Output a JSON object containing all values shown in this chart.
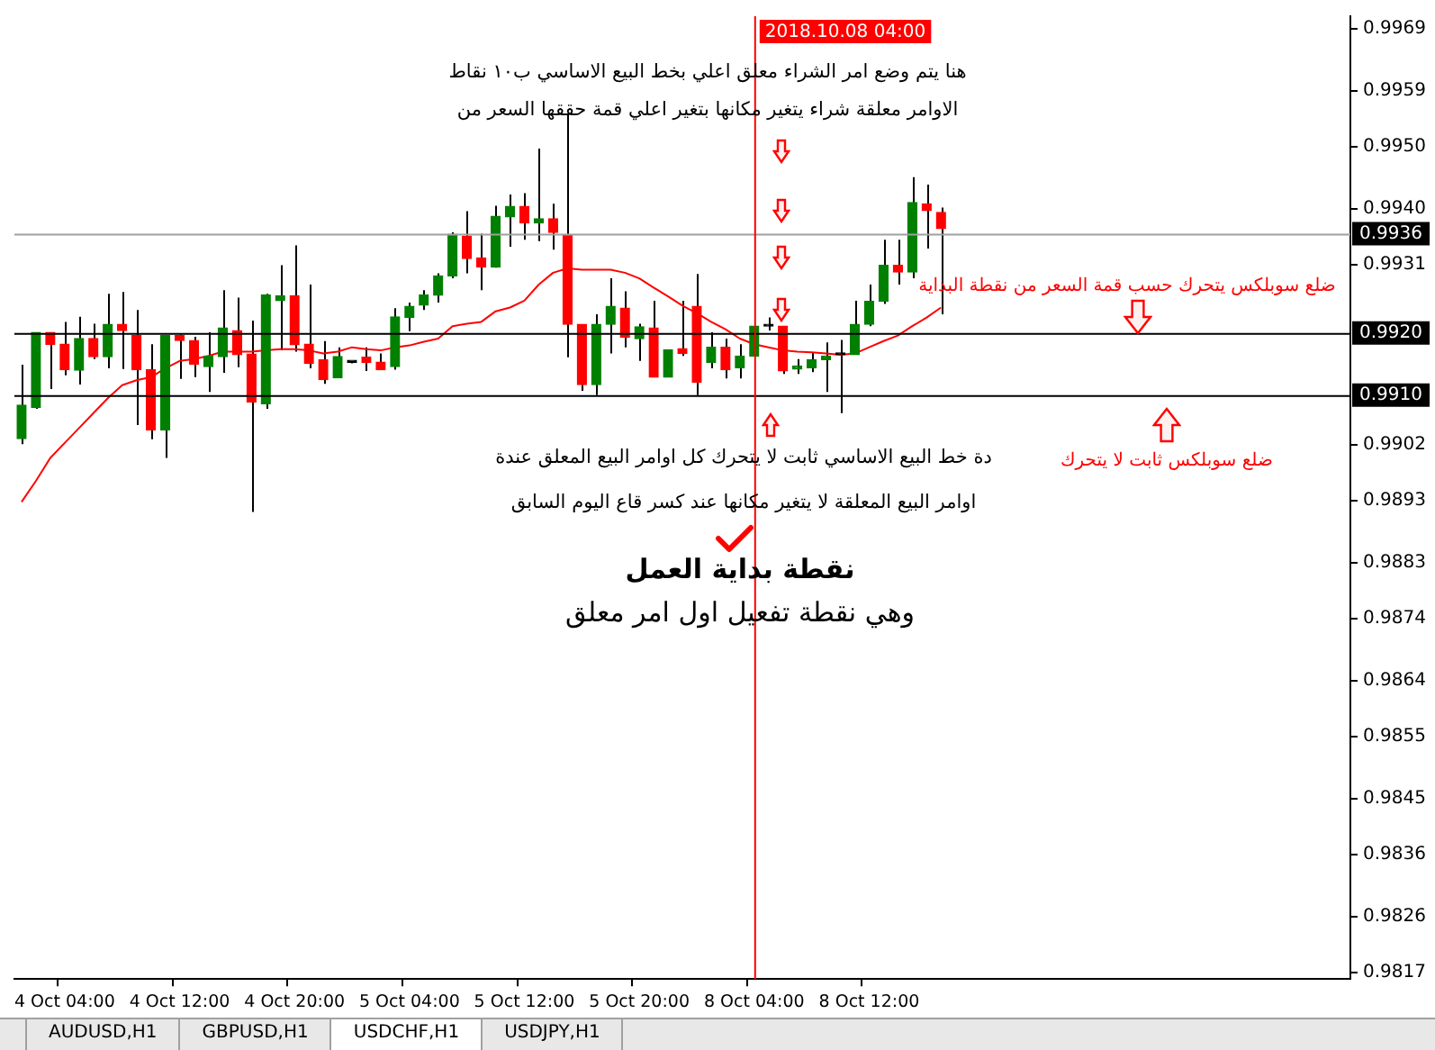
{
  "chart_data": {
    "type": "candlestick",
    "categories": [
      null,
      null,
      null,
      "4 Oct 04:00",
      null,
      null,
      null,
      null,
      null,
      null,
      null,
      "4 Oct 12:00",
      null,
      null,
      null,
      null,
      null,
      null,
      null,
      "4 Oct 20:00",
      null,
      null,
      null,
      null,
      null,
      null,
      null,
      "5 Oct 04:00",
      null,
      null,
      null,
      null,
      null,
      null,
      null,
      "5 Oct 12:00",
      null,
      null,
      null,
      null,
      null,
      null,
      null,
      "5 Oct 20:00",
      null,
      null,
      null,
      null,
      null,
      null,
      null,
      "8 Oct 04:00",
      null,
      null,
      null,
      null,
      null,
      null,
      null,
      "8 Oct 12:00",
      null,
      null,
      null,
      null,
      null,
      null,
      null,
      null,
      null,
      null,
      null,
      null,
      null,
      null,
      null,
      null,
      null,
      null,
      null,
      null,
      null,
      null,
      null,
      null,
      null,
      null,
      null,
      null,
      null,
      null,
      null,
      null,
      null
    ],
    "series": [
      {
        "type": "line",
        "color": "#ff0000",
        "values": [
          0.98928,
          0.98962,
          0.98999,
          0.99023,
          0.99047,
          0.99071,
          0.99095,
          0.99116,
          0.99124,
          0.99129,
          0.99143,
          0.99155,
          0.99158,
          0.99163,
          0.9917,
          0.9917,
          0.9917,
          0.99172,
          0.99174,
          0.99174,
          0.99172,
          0.99167,
          0.9917,
          0.99177,
          0.99174,
          0.99172,
          0.99177,
          0.9918,
          0.99186,
          0.99191,
          0.99211,
          0.99215,
          0.99218,
          0.99235,
          0.99241,
          0.99252,
          0.99278,
          0.99297,
          0.99304,
          0.99302,
          0.99302,
          0.99302,
          0.99297,
          0.99288,
          0.99273,
          0.99259,
          0.99244,
          0.99232,
          0.99218,
          0.99206,
          0.99191,
          0.99182,
          0.99177,
          0.99172,
          0.9917,
          0.99169,
          0.99167,
          0.99165,
          0.99167,
          0.99177,
          0.99187,
          0.99196,
          0.99211,
          0.99225,
          0.99241,
          null,
          null,
          null,
          null,
          null,
          null,
          null,
          null,
          null,
          null,
          null,
          null,
          null,
          null,
          null,
          null,
          null,
          null,
          null,
          null,
          null,
          null,
          null,
          null,
          null,
          null,
          null,
          null
        ]
      },
      {
        "ohlc": [
          [
            0.9903,
            0.99149,
            0.99021,
            0.99084
          ],
          [
            0.9908,
            0.99201,
            0.99078,
            0.99201
          ],
          [
            0.99201,
            0.99201,
            0.9911,
            0.99182
          ],
          [
            0.99182,
            0.99218,
            0.99132,
            0.99141
          ],
          [
            0.9914,
            0.99226,
            0.99117,
            0.99191
          ],
          [
            0.99191,
            0.99215,
            0.99158,
            0.99162
          ],
          [
            0.99162,
            0.99263,
            0.99143,
            0.99214
          ],
          [
            0.99214,
            0.99266,
            0.99142,
            0.99204
          ],
          [
            0.99196,
            0.99237,
            0.99052,
            0.99141
          ],
          [
            0.99141,
            0.99182,
            0.99029,
            0.99044
          ],
          [
            0.99044,
            0.99196,
            0.98999,
            0.99196
          ],
          [
            0.99196,
            0.99198,
            0.99126,
            0.99188
          ],
          [
            0.99188,
            0.99194,
            0.99129,
            0.9915
          ],
          [
            0.99146,
            0.99201,
            0.99105,
            0.99163
          ],
          [
            0.99162,
            0.99269,
            0.99136,
            0.99208
          ],
          [
            0.99204,
            0.99257,
            0.99145,
            0.99165
          ],
          [
            0.99166,
            0.9922,
            0.98912,
            0.99089
          ],
          [
            0.99086,
            0.99263,
            0.99078,
            0.99261
          ],
          [
            0.99252,
            0.99309,
            0.99172,
            0.9926
          ],
          [
            0.9926,
            0.99341,
            0.9917,
            0.99181
          ],
          [
            0.99182,
            0.99278,
            0.99143,
            0.99151
          ],
          [
            0.99157,
            0.99187,
            0.99118,
            0.99125
          ],
          [
            0.99128,
            0.99177,
            0.99128,
            0.99162
          ],
          [
            0.99153,
            0.99155,
            0.99151,
            0.99153
          ],
          [
            0.99161,
            0.99177,
            0.99139,
            0.99153
          ],
          [
            0.99153,
            0.99167,
            0.99141,
            0.99141
          ],
          [
            0.99146,
            0.9924,
            0.99141,
            0.99226
          ],
          [
            0.99225,
            0.99249,
            0.99203,
            0.99243
          ],
          [
            0.99245,
            0.99269,
            0.99237,
            0.99261
          ],
          [
            0.99261,
            0.99296,
            0.99249,
            0.99292
          ],
          [
            0.99292,
            0.99362,
            0.99288,
            0.99359
          ],
          [
            0.99356,
            0.99396,
            0.99296,
            0.9932
          ],
          [
            0.99321,
            0.9936,
            0.99269,
            0.99306
          ],
          [
            0.99306,
            0.99405,
            0.99305,
            0.99388
          ],
          [
            0.99387,
            0.99423,
            0.99339,
            0.99404
          ],
          [
            0.99404,
            0.99425,
            0.9935,
            0.99377
          ],
          [
            0.99377,
            0.99497,
            0.99348,
            0.99384
          ],
          [
            0.99384,
            0.99408,
            0.99334,
            0.99362
          ],
          [
            0.99358,
            0.99552,
            0.99161,
            0.99214
          ],
          [
            0.99214,
            0.99214,
            0.99107,
            0.99117
          ],
          [
            0.99117,
            0.9923,
            0.991,
            0.99214
          ],
          [
            0.99214,
            0.99288,
            0.99167,
            0.99243
          ],
          [
            0.9924,
            0.99267,
            0.99177,
            0.99193
          ],
          [
            0.99191,
            0.99215,
            0.99155,
            0.9921
          ],
          [
            0.99208,
            0.99252,
            0.99129,
            0.99129
          ],
          [
            0.99129,
            0.99173,
            0.99129,
            0.99173
          ],
          [
            0.99175,
            0.99252,
            0.99163,
            0.99167
          ],
          [
            0.99243,
            0.99295,
            0.991,
            0.99121
          ],
          [
            0.99153,
            0.99201,
            0.99143,
            0.99177
          ],
          [
            0.99177,
            0.99191,
            0.99127,
            0.99141
          ],
          [
            0.99144,
            0.99182,
            0.99127,
            0.99163
          ],
          [
            0.99163,
            0.99211,
            0.99163,
            0.99211
          ],
          [
            0.99211,
            0.99225,
            0.99204,
            0.99211
          ],
          [
            0.99211,
            0.99211,
            0.99134,
            0.99139
          ],
          [
            0.99142,
            0.99158,
            0.99134,
            0.99147
          ],
          [
            0.99144,
            0.99169,
            0.99137,
            0.99157
          ],
          [
            0.99157,
            0.99185,
            0.99105,
            0.99163
          ],
          [
            0.99165,
            0.99189,
            0.99071,
            0.99165
          ],
          [
            0.99165,
            0.99252,
            0.99165,
            0.99214
          ],
          [
            0.99214,
            0.99278,
            0.99211,
            0.99251
          ],
          [
            0.99251,
            0.9935,
            0.99247,
            0.99309
          ],
          [
            0.99309,
            0.9935,
            0.99278,
            0.99298
          ],
          [
            0.99298,
            0.99451,
            0.99288,
            0.9941
          ],
          [
            0.99408,
            0.99439,
            0.99336,
            0.99397
          ],
          [
            0.99394,
            0.99402,
            0.9923,
            0.99368
          ],
          null,
          null,
          null,
          null,
          null,
          null,
          null,
          null,
          null,
          null,
          null,
          null,
          null,
          null,
          null,
          null,
          null,
          null,
          null,
          null,
          null,
          null,
          null,
          null,
          null,
          null,
          null,
          null
        ],
        "colors": [
          "#008000",
          "#008000",
          "#ff0000",
          "#ff0000",
          "#008000",
          "#ff0000",
          "#008000",
          "#ff0000",
          "#ff0000",
          "#ff0000",
          "#008000",
          "#ff0000",
          "#ff0000",
          "#008000",
          "#008000",
          "#ff0000",
          "#ff0000",
          "#008000",
          "#008000",
          "#ff0000",
          "#ff0000",
          "#ff0000",
          "#008000",
          "#000000",
          "#ff0000",
          "#ff0000",
          "#008000",
          "#008000",
          "#008000",
          "#008000",
          "#008000",
          "#ff0000",
          "#ff0000",
          "#008000",
          "#008000",
          "#ff0000",
          "#008000",
          "#ff0000",
          "#ff0000",
          "#ff0000",
          "#008000",
          "#008000",
          "#ff0000",
          "#008000",
          "#ff0000",
          "#008000",
          "#ff0000",
          "#ff0000",
          "#008000",
          "#ff0000",
          "#008000",
          "#008000",
          "#000000",
          "#ff0000",
          "#008000",
          "#008000",
          "#008000",
          "#000000",
          "#008000",
          "#008000",
          "#008000",
          "#ff0000",
          "#008000",
          "#ff0000",
          "#ff0000",
          null,
          null,
          null,
          null,
          null,
          null,
          null,
          null,
          null,
          null,
          null,
          null,
          null,
          null,
          null,
          null,
          null,
          null,
          null,
          null,
          null,
          null,
          null,
          null,
          null,
          null,
          null,
          null
        ]
      }
    ],
    "marker": "none",
    "ylim": [
      0.9816,
      0.9971
    ],
    "yticks": [
      0.9969,
      0.9959,
      {
        "value": 0.995,
        "label": "0.9950"
      },
      {
        "value": 0.994,
        "label": "0.9940"
      },
      0.9931,
      0.9902,
      0.9893,
      0.9883,
      0.9874,
      0.9864,
      0.9855,
      0.9845,
      0.9836,
      0.9826,
      0.9817
    ],
    "ref_lines": [
      {
        "axis": "y",
        "value": 0.9936,
        "label": "0.9936",
        "color": "#a0a0a0"
      },
      {
        "axis": "y",
        "value": 0.992,
        "label": "0.9920",
        "color": "#000000"
      },
      {
        "axis": "y",
        "value": 0.991,
        "label": "0.9910",
        "color": "#000000"
      },
      {
        "axis": "x",
        "value": "8 Oct 04:00",
        "label": "2018.10.08 04:00",
        "color": "#ff0000"
      }
    ],
    "annotations": [
      "هنا يتم وضع امر الشراء معلق اعلي بخط البيع الاساسي ب١٠ نقاط",
      "الاوامر معلقة شراء يتغير مكانها بتغير اعلي قمة حققها السعر من",
      "دة خط البيع الاساسي ثابت لا يتحرك كل اوامر البيع المعلق عندة",
      "اوامر البيع المعلقة لا يتغير مكانها عند كسر قاع اليوم السابق",
      "نقطة بداية العمل",
      "وهي نقطة تفعيل اول امر معلق",
      "ضلع سوبلكس يتحرك حسب قمة السعر من نقطة البداية",
      "ضلع سوبلكس ثابت لا يتحرك",
      "AUDUSD,H1",
      "GBPUSD,H1",
      "USDCHF,H1",
      "USDJPY,H1"
    ]
  }
}
